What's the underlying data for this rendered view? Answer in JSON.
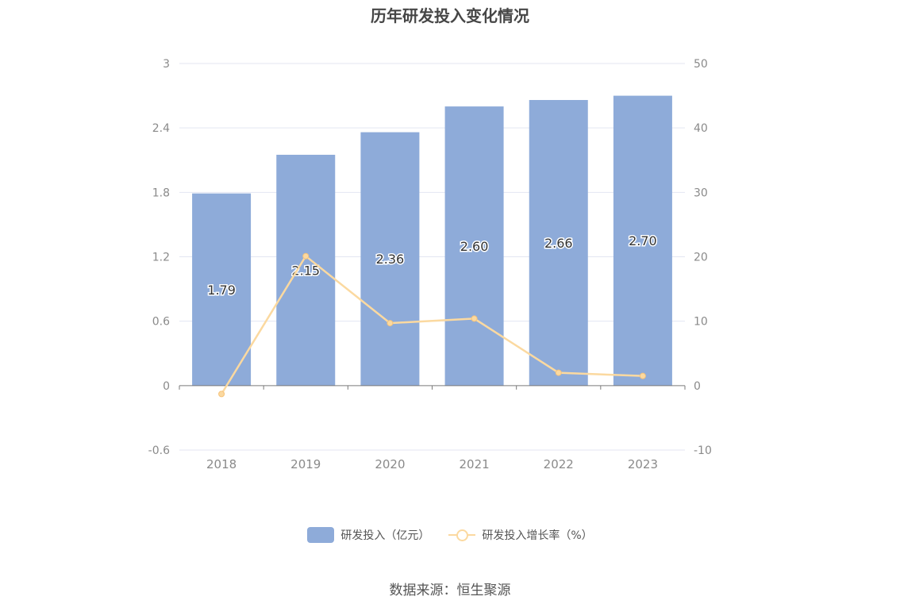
{
  "chart_data": {
    "type": "bar",
    "title": "历年研发投入变化情况",
    "categories": [
      "2018",
      "2019",
      "2020",
      "2021",
      "2022",
      "2023"
    ],
    "series": [
      {
        "name": "研发投入（亿元）",
        "type": "bar",
        "axis": "left",
        "color": "#8eabd9",
        "values": [
          1.79,
          2.15,
          2.36,
          2.6,
          2.66,
          2.7
        ],
        "labels": [
          "1.79",
          "2.15",
          "2.36",
          "2.60",
          "2.66",
          "2.70"
        ]
      },
      {
        "name": "研发投入增长率（%）",
        "type": "line",
        "axis": "right",
        "color": "#fbd9a0",
        "values": [
          -1.3,
          20.1,
          9.7,
          10.4,
          2.0,
          1.5
        ]
      }
    ],
    "y_left": {
      "ylim": [
        -0.6,
        3
      ],
      "ticks": [
        "-0.6",
        "0",
        "0.6",
        "1.2",
        "1.8",
        "2.4",
        "3"
      ]
    },
    "y_right": {
      "ylim": [
        -10,
        50
      ],
      "ticks": [
        "-10",
        "0",
        "10",
        "20",
        "30",
        "40",
        "50"
      ]
    },
    "grid": true,
    "legend_position": "bottom-center",
    "source": "数据来源：恒生聚源"
  }
}
